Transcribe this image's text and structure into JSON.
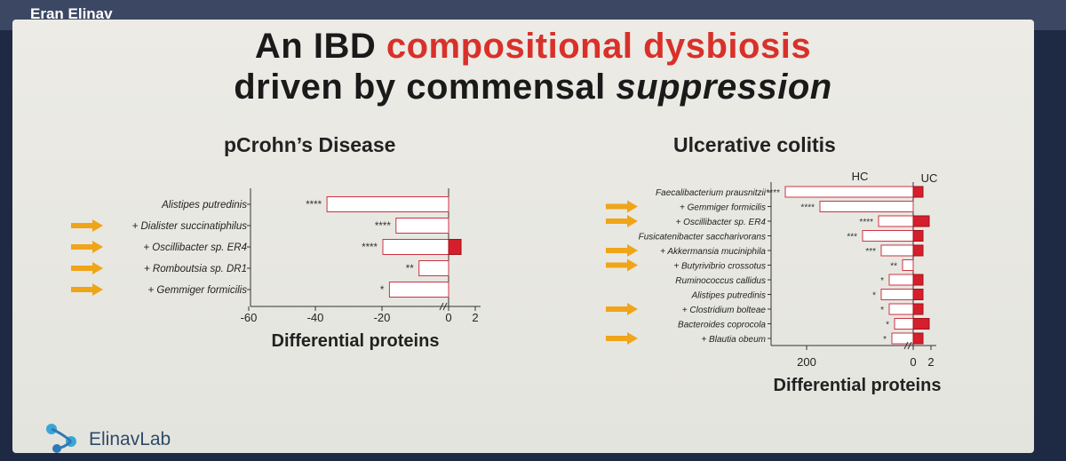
{
  "speaker": "Eran Elinav",
  "slide": {
    "title_line1_part1": "An IBD ",
    "title_line1_part2": "compositional dysbiosis",
    "title_line2_part1": "driven by commensal ",
    "title_line2_part2": "suppression"
  },
  "logo": {
    "text": "ElinavLab",
    "icon": "molecule-icon"
  },
  "colors": {
    "bar_fill_red": "#d61f2c",
    "bar_outline": "#cc3344",
    "arrow": "#f0a418",
    "title_red": "#d9302a"
  },
  "chart_data": [
    {
      "type": "bar",
      "orientation": "horizontal",
      "title": "pCrohn’s Disease",
      "xlabel": "Differential proteins",
      "xticks": [
        "-60",
        "-40",
        "-20",
        "0",
        "2"
      ],
      "categories": [
        "Alistipes putredinis",
        "Dialister succinatiphilus",
        "Oscillibacter sp. ER4",
        "Romboutsia sp. DR1",
        "Gemmiger formicilis"
      ],
      "highlighted": [
        false,
        true,
        true,
        true,
        true
      ],
      "neg_values": [
        -37,
        -16,
        -20,
        -9,
        -18
      ],
      "pos_values": [
        0,
        0,
        1.4,
        0,
        0
      ],
      "significance": [
        "****",
        "****",
        "****",
        "**",
        "*"
      ]
    },
    {
      "type": "bar",
      "orientation": "horizontal",
      "title": "Ulcerative colitis",
      "xlabel": "Differential proteins",
      "xticks": [
        "200",
        "0",
        "2"
      ],
      "group_labels": [
        "HC",
        "UC"
      ],
      "categories": [
        "Faecalibacterium prausnitzii",
        "Gemmiger formicilis",
        "Oscillibacter sp. ER4",
        "Fusicatenibacter saccharivorans",
        "Akkermansia muciniphila",
        "Butyrivibrio crossotus",
        "Ruminococcus callidus",
        "Alistipes putredinis",
        "Clostridium bolteae",
        "Bacteroides coprocola",
        "Blautia obeum"
      ],
      "highlighted": [
        false,
        true,
        true,
        false,
        true,
        true,
        false,
        false,
        true,
        false,
        true
      ],
      "neg_values": [
        -240,
        -175,
        -65,
        -95,
        -60,
        -20,
        -45,
        -60,
        -45,
        -35,
        -40
      ],
      "pos_values": [
        1.1,
        0,
        1.8,
        1.1,
        1.1,
        0,
        1.1,
        1.1,
        1.1,
        1.8,
        1.1
      ],
      "significance": [
        "****",
        "****",
        "****",
        "***",
        "***",
        "**",
        "*",
        "*",
        "*",
        "*",
        "*"
      ]
    }
  ]
}
